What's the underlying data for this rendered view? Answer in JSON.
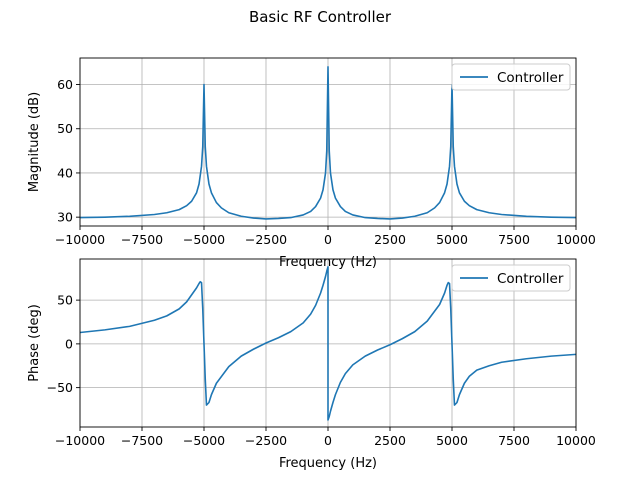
{
  "title": "Basic RF Controller",
  "chart_data": [
    {
      "type": "line",
      "xlabel": "Frequency (Hz)",
      "ylabel": "Magnitude (dB)",
      "xlim": [
        -10000,
        10000
      ],
      "ylim": [
        28,
        66
      ],
      "xticks": [
        -10000,
        -7500,
        -5000,
        -2500,
        0,
        2500,
        5000,
        7500,
        10000
      ],
      "xtick_labels": [
        "−10000",
        "−7500",
        "−5000",
        "−2500",
        "0",
        "2500",
        "5000",
        "7500",
        "10000"
      ],
      "yticks": [
        30,
        40,
        50,
        60
      ],
      "ytick_labels": [
        "30",
        "40",
        "50",
        "60"
      ],
      "grid": true,
      "legend": "top-right",
      "series": [
        {
          "name": "Controller",
          "color": "#1f77b4",
          "x": [
            -10000,
            -9000,
            -8000,
            -7000,
            -6500,
            -6000,
            -5700,
            -5500,
            -5300,
            -5200,
            -5100,
            -5050,
            -5000,
            -4950,
            -4900,
            -4800,
            -4700,
            -4500,
            -4300,
            -4000,
            -3500,
            -3000,
            -2500,
            -2000,
            -1500,
            -1000,
            -700,
            -500,
            -300,
            -200,
            -100,
            -50,
            0,
            50,
            100,
            200,
            300,
            500,
            700,
            1000,
            1500,
            2000,
            2500,
            3000,
            3500,
            4000,
            4300,
            4500,
            4700,
            4800,
            4900,
            4950,
            5000,
            5050,
            5100,
            5200,
            5300,
            5500,
            5700,
            6000,
            6500,
            7000,
            8000,
            9000,
            10000
          ],
          "y": [
            29.9,
            30.0,
            30.2,
            30.6,
            31.0,
            31.7,
            32.6,
            33.6,
            35.5,
            37.5,
            41.5,
            46.0,
            60.0,
            46.0,
            41.5,
            37.5,
            35.5,
            33.3,
            32.1,
            31.0,
            30.2,
            29.8,
            29.6,
            29.7,
            29.9,
            30.5,
            31.3,
            32.4,
            34.3,
            36.2,
            40.0,
            45.0,
            64.0,
            45.0,
            40.0,
            36.2,
            34.3,
            32.4,
            31.3,
            30.5,
            29.9,
            29.7,
            29.6,
            29.8,
            30.2,
            31.0,
            32.1,
            33.3,
            35.5,
            37.5,
            41.5,
            46.0,
            60.0,
            46.0,
            41.5,
            37.5,
            35.5,
            33.6,
            32.6,
            31.7,
            31.0,
            30.6,
            30.2,
            30.0,
            29.9
          ]
        }
      ]
    },
    {
      "type": "line",
      "xlabel": "Frequency (Hz)",
      "ylabel": "Phase (deg)",
      "xlim": [
        -10000,
        10000
      ],
      "ylim": [
        -95,
        97
      ],
      "xticks": [
        -10000,
        -7500,
        -5000,
        -2500,
        0,
        2500,
        5000,
        7500,
        10000
      ],
      "xtick_labels": [
        "−10000",
        "−7500",
        "−5000",
        "−2500",
        "0",
        "2500",
        "5000",
        "7500",
        "10000"
      ],
      "yticks": [
        -50,
        0,
        50
      ],
      "ytick_labels": [
        "−50",
        "0",
        "50"
      ],
      "grid": true,
      "legend": "top-right",
      "series": [
        {
          "name": "Controller",
          "color": "#1f77b4",
          "x": [
            -10000,
            -9000,
            -8000,
            -7000,
            -6500,
            -6000,
            -5700,
            -5500,
            -5300,
            -5200,
            -5150,
            -5100,
            -5050,
            -5000,
            -4950,
            -4900,
            -4800,
            -4700,
            -4500,
            -4000,
            -3500,
            -3000,
            -2500,
            -2000,
            -1500,
            -1000,
            -700,
            -500,
            -300,
            -200,
            -100,
            -50,
            0,
            0.1,
            50,
            100,
            200,
            300,
            500,
            700,
            1000,
            1500,
            2000,
            2500,
            3000,
            3500,
            4000,
            4500,
            4700,
            4800,
            4850,
            4900,
            4950,
            5000,
            5050,
            5100,
            5200,
            5300,
            5500,
            5700,
            6000,
            6500,
            7000,
            8000,
            9000,
            10000
          ],
          "y": [
            13,
            16,
            20,
            27,
            32,
            40,
            48,
            56,
            64,
            69,
            71,
            70,
            40,
            0,
            -40,
            -70,
            -67,
            -58,
            -45,
            -26,
            -14,
            -6,
            1,
            7,
            14,
            24,
            34,
            44,
            58,
            67,
            77,
            83,
            88,
            -87,
            -83,
            -77,
            -67,
            -58,
            -44,
            -34,
            -24,
            -14,
            -7,
            -1,
            6,
            14,
            26,
            45,
            58,
            67,
            70,
            69,
            40,
            0,
            -40,
            -70,
            -67,
            -58,
            -45,
            -37,
            -30,
            -25,
            -21,
            -17,
            -14,
            -12
          ]
        }
      ]
    }
  ]
}
